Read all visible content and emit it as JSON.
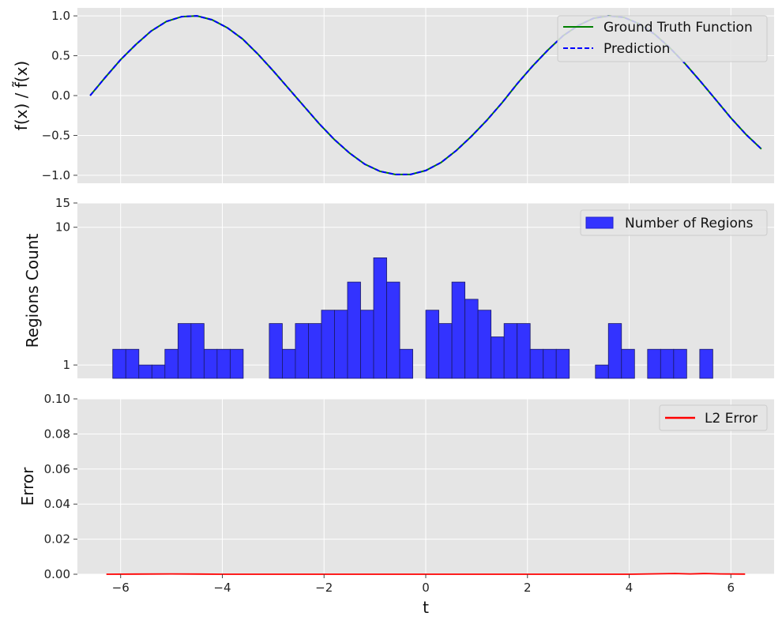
{
  "chart_data": [
    {
      "type": "line",
      "ylabel": "f(x) / f̃(x)",
      "xlabel": "",
      "xlim": [
        -6.85,
        6.85
      ],
      "ylim": [
        -1.1,
        1.1
      ],
      "yticks": [
        -1.0,
        -0.5,
        0.0,
        0.5,
        1.0
      ],
      "ytick_labels": [
        "−1.0",
        "−0.5",
        "0.0",
        "0.5",
        "1.0"
      ],
      "grid": true,
      "legend_position": "top-right",
      "series": [
        {
          "name": "Ground Truth Function",
          "color": "#008000",
          "style": "solid",
          "x": [
            -6.6,
            -6.3,
            -6.0,
            -5.7,
            -5.4,
            -5.1,
            -4.8,
            -4.5,
            -4.2,
            -3.9,
            -3.6,
            -3.3,
            -3.0,
            -2.7,
            -2.4,
            -2.1,
            -1.8,
            -1.5,
            -1.2,
            -0.9,
            -0.6,
            -0.3,
            0.0,
            0.3,
            0.6,
            0.9,
            1.2,
            1.5,
            1.8,
            2.1,
            2.4,
            2.7,
            3.0,
            3.3,
            3.6,
            3.9,
            4.2,
            4.5,
            4.8,
            5.1,
            5.4,
            5.7,
            6.0,
            6.3,
            6.6
          ],
          "y": [
            0.0,
            0.23,
            0.45,
            0.64,
            0.81,
            0.93,
            0.99,
            1.0,
            0.95,
            0.85,
            0.71,
            0.52,
            0.31,
            0.09,
            -0.13,
            -0.35,
            -0.55,
            -0.72,
            -0.86,
            -0.95,
            -0.99,
            -0.99,
            -0.94,
            -0.84,
            -0.69,
            -0.51,
            -0.31,
            -0.09,
            0.15,
            0.37,
            0.57,
            0.75,
            0.88,
            0.97,
            1.0,
            0.98,
            0.9,
            0.77,
            0.6,
            0.4,
            0.18,
            -0.05,
            -0.28,
            -0.49,
            -0.67
          ]
        },
        {
          "name": "Prediction",
          "color": "#0000ff",
          "style": "dashed",
          "x": [
            -6.6,
            -6.3,
            -6.0,
            -5.7,
            -5.4,
            -5.1,
            -4.8,
            -4.5,
            -4.2,
            -3.9,
            -3.6,
            -3.3,
            -3.0,
            -2.7,
            -2.4,
            -2.1,
            -1.8,
            -1.5,
            -1.2,
            -0.9,
            -0.6,
            -0.3,
            0.0,
            0.3,
            0.6,
            0.9,
            1.2,
            1.5,
            1.8,
            2.1,
            2.4,
            2.7,
            3.0,
            3.3,
            3.6,
            3.9,
            4.2,
            4.5,
            4.8,
            5.1,
            5.4,
            5.7,
            6.0,
            6.3,
            6.6
          ],
          "y": [
            0.0,
            0.23,
            0.45,
            0.64,
            0.81,
            0.93,
            0.99,
            1.0,
            0.95,
            0.85,
            0.71,
            0.52,
            0.31,
            0.09,
            -0.13,
            -0.35,
            -0.55,
            -0.72,
            -0.86,
            -0.95,
            -0.99,
            -0.99,
            -0.94,
            -0.84,
            -0.69,
            -0.51,
            -0.31,
            -0.09,
            0.15,
            0.37,
            0.57,
            0.75,
            0.88,
            0.97,
            1.0,
            0.98,
            0.9,
            0.77,
            0.6,
            0.4,
            0.18,
            -0.05,
            -0.28,
            -0.49,
            -0.67
          ]
        }
      ]
    },
    {
      "type": "bar",
      "ylabel": "Regions Count",
      "xlabel": "",
      "xlim": [
        -6.85,
        6.85
      ],
      "yscale": "log",
      "ylim": [
        0.8,
        15
      ],
      "yticks": [
        1,
        10,
        15
      ],
      "ytick_labels": [
        "1",
        "10",
        "15"
      ],
      "grid": true,
      "legend_position": "top-right",
      "bar_color": "#0000ff",
      "bin_width": 0.2565,
      "series": [
        {
          "name": "Number of Regions",
          "bin_left_edges": [
            -6.155,
            -5.898,
            -5.642,
            -5.385,
            -5.129,
            -4.872,
            -4.616,
            -4.359,
            -4.103,
            -3.846,
            -3.59,
            -3.333,
            -3.077,
            -2.82,
            -2.564,
            -2.307,
            -2.051,
            -1.794,
            -1.538,
            -1.281,
            -1.025,
            -0.768,
            -0.512,
            -0.255,
            0.001,
            0.258,
            0.514,
            0.771,
            1.027,
            1.284,
            1.54,
            1.797,
            2.053,
            2.31,
            2.566,
            2.823,
            3.079,
            3.336,
            3.592,
            3.849,
            4.105,
            4.362,
            4.618,
            4.875,
            5.131,
            5.388,
            5.644,
            5.901,
            6.157
          ],
          "values": [
            1.3,
            1.3,
            1.0,
            1.0,
            1.3,
            2.0,
            2.0,
            1.3,
            1.3,
            1.3,
            0,
            0,
            2.0,
            1.3,
            2.0,
            2.0,
            2.5,
            2.5,
            4.0,
            2.5,
            6.0,
            4.0,
            1.3,
            0,
            2.5,
            2.0,
            4.0,
            3.0,
            2.5,
            1.6,
            2.0,
            2.0,
            1.3,
            1.3,
            1.3,
            0,
            0,
            1.0,
            2.0,
            1.3,
            0,
            1.3,
            1.3,
            1.3,
            0,
            1.3,
            0,
            0,
            0
          ]
        }
      ]
    },
    {
      "type": "line",
      "ylabel": "Error",
      "xlabel": "t",
      "xlim": [
        -6.85,
        6.85
      ],
      "ylim": [
        0.0,
        0.1
      ],
      "xticks": [
        -6,
        -4,
        -2,
        0,
        2,
        4,
        6
      ],
      "xtick_labels": [
        "−6",
        "−4",
        "−2",
        "0",
        "2",
        "4",
        "6"
      ],
      "yticks": [
        0.0,
        0.02,
        0.04,
        0.06,
        0.08,
        0.1
      ],
      "ytick_labels": [
        "0.00",
        "0.02",
        "0.04",
        "0.06",
        "0.08",
        "0.10"
      ],
      "grid": true,
      "legend_position": "top-right",
      "series": [
        {
          "name": "L2 Error",
          "color": "#ff0000",
          "x": [
            -6.28,
            -5.7,
            -5.0,
            -4.0,
            -3.0,
            -2.0,
            -1.0,
            0.0,
            1.0,
            2.0,
            3.0,
            4.0,
            4.9,
            5.2,
            5.5,
            5.8,
            6.28
          ],
          "y": [
            0.0,
            0.0001,
            0.0002,
            0.0,
            0.0,
            0.0,
            0.0,
            0.0,
            0.0,
            0.0,
            0.0,
            0.0,
            0.0004,
            0.0002,
            0.0004,
            0.0002,
            0.0001
          ]
        }
      ]
    }
  ]
}
